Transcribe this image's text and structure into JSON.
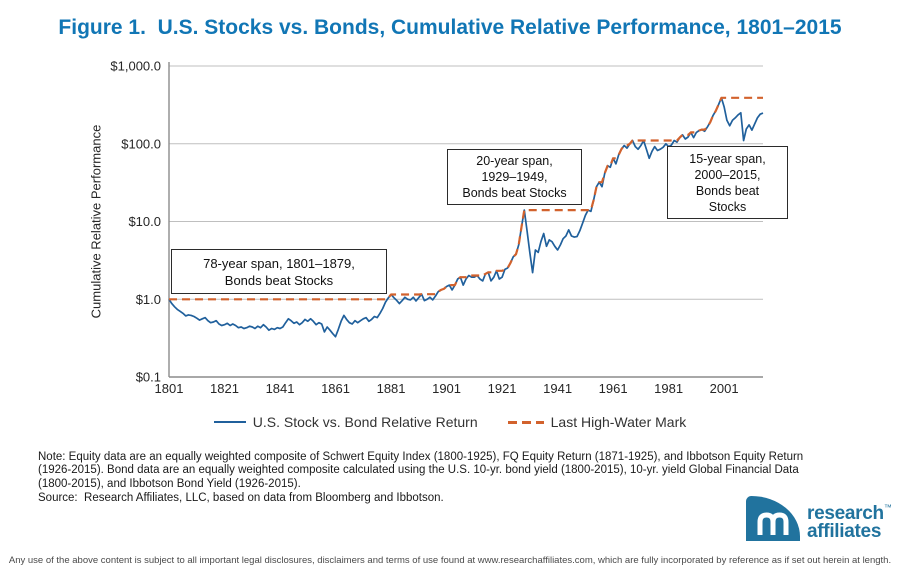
{
  "page": {
    "title": "Figure 1.  U.S. Stocks vs. Bonds, Cumulative Relative Performance, 1801–2015",
    "footer": "Any use of the above content is subject to all important legal disclosures, disclaimers and terms of use found at www.researchaffiliates.com, which are fully incorporated by reference as if set out herein at length."
  },
  "notes": {
    "note": "Note: Equity data are an equally weighted composite of Schwert Equity Index (1800-1925), FQ Equity Return (1871-1925), and Ibbotson Equity Return\n(1926-2015). Bond data are an equally weighted composite calculated using the U.S. 10-yr. bond yield (1800-2015), 10-yr. yield Global Financial Data\n(1800-2015), and Ibbotson Bond Yield (1926-2015).",
    "source": "Source:  Research Affiliates, LLC, based on data from Bloomberg and Ibbotson."
  },
  "logo": {
    "brand_top": "research",
    "trademark": "™",
    "brand_bottom": "affiliates"
  },
  "colors": {
    "title_blue": "#1176b5",
    "line_blue": "#20609c",
    "hwm_orange": "#d2622d",
    "grid_gray": "#bfbfbf",
    "spine_gray": "#8c8c8c",
    "logo_blue": "#21739e"
  },
  "chart_data": {
    "type": "line",
    "title": "Figure 1.  U.S. Stocks vs. Bonds, Cumulative Relative Performance, 1801–2015",
    "xlabel": "",
    "ylabel": "Cumulative Relative Performance",
    "yscale": "log",
    "ylim": [
      0.1,
      1000
    ],
    "xlim": [
      1801,
      2015
    ],
    "grid": "horizontal",
    "legend_position": "bottom",
    "yticks": [
      {
        "value": 1000,
        "label": "$1,000.0"
      },
      {
        "value": 100,
        "label": "$100.0"
      },
      {
        "value": 10,
        "label": "$10.0"
      },
      {
        "value": 1,
        "label": "$1.0"
      },
      {
        "value": 0.1,
        "label": "$0.1"
      }
    ],
    "xticks": [
      1801,
      1821,
      1841,
      1861,
      1881,
      1901,
      1921,
      1941,
      1961,
      1981,
      2001
    ],
    "legend": [
      {
        "name": "U.S. Stock vs. Bond Relative Return",
        "color": "#20609c",
        "style": "solid"
      },
      {
        "name": "Last High-Water Mark",
        "color": "#d2622d",
        "style": "dashed"
      }
    ],
    "annotations": [
      {
        "text": "78-year span, 1801–1879,\nBonds beat Stocks"
      },
      {
        "text": "20-year span,\n1929–1949,\nBonds beat Stocks"
      },
      {
        "text": "15-year span,\n2000–2015,\nBonds beat\nStocks"
      }
    ],
    "series": [
      {
        "name": "U.S. Stock vs. Bond Relative Return",
        "x_start": 1801,
        "x_step": 1,
        "values": [
          1.0,
          0.88,
          0.8,
          0.74,
          0.7,
          0.66,
          0.61,
          0.63,
          0.62,
          0.6,
          0.57,
          0.54,
          0.56,
          0.58,
          0.53,
          0.5,
          0.51,
          0.53,
          0.48,
          0.46,
          0.47,
          0.49,
          0.46,
          0.48,
          0.46,
          0.43,
          0.44,
          0.42,
          0.43,
          0.45,
          0.44,
          0.42,
          0.45,
          0.43,
          0.47,
          0.44,
          0.4,
          0.42,
          0.41,
          0.43,
          0.42,
          0.44,
          0.5,
          0.56,
          0.53,
          0.49,
          0.51,
          0.47,
          0.5,
          0.55,
          0.52,
          0.56,
          0.52,
          0.47,
          0.5,
          0.48,
          0.38,
          0.44,
          0.4,
          0.36,
          0.33,
          0.41,
          0.52,
          0.62,
          0.55,
          0.5,
          0.48,
          0.53,
          0.5,
          0.53,
          0.56,
          0.58,
          0.52,
          0.55,
          0.6,
          0.58,
          0.66,
          0.76,
          0.92,
          1.04,
          1.15,
          1.05,
          0.97,
          0.88,
          0.96,
          1.06,
          1.0,
          0.98,
          1.06,
          0.95,
          1.05,
          1.16,
          0.96,
          1.0,
          1.06,
          0.98,
          1.1,
          1.25,
          1.32,
          1.36,
          1.46,
          1.52,
          1.32,
          1.52,
          1.82,
          1.92,
          1.52,
          1.82,
          2.02,
          1.92,
          1.92,
          2.02,
          1.82,
          1.72,
          2.12,
          2.22,
          1.72,
          1.92,
          2.32,
          1.82,
          1.92,
          2.42,
          2.52,
          2.92,
          3.5,
          3.8,
          5.0,
          8.5,
          14.0,
          7.5,
          4.0,
          2.2,
          4.3,
          4.0,
          5.5,
          7.0,
          4.8,
          5.8,
          5.5,
          4.8,
          4.3,
          5.0,
          6.0,
          6.5,
          7.8,
          6.5,
          6.3,
          6.4,
          7.6,
          9.5,
          12.0,
          14.0,
          13.5,
          19.0,
          28.0,
          32.0,
          28.0,
          42.0,
          52.0,
          50.0,
          65.0,
          55.0,
          72.0,
          85.0,
          95.0,
          88.0,
          100.0,
          110.0,
          92.0,
          85.0,
          95.0,
          110.0,
          85.0,
          65.0,
          80.0,
          92.0,
          82.0,
          85.0,
          90.0,
          100.0,
          92.0,
          96.0,
          110.0,
          105.0,
          120.0,
          130.0,
          115.0,
          122.0,
          140.0,
          120.0,
          140.0,
          148.0,
          152.0,
          145.0,
          165.0,
          190.0,
          230.0,
          265.0,
          320.0,
          390.0,
          300.0,
          200.0,
          170.0,
          200.0,
          215.0,
          235.0,
          250.0,
          110.0,
          155.0,
          175.0,
          150.0,
          180.0,
          215.0,
          240.0,
          248.0
        ]
      },
      {
        "name": "Last High-Water Mark",
        "derivation": "running_max_of_series_0"
      }
    ]
  }
}
